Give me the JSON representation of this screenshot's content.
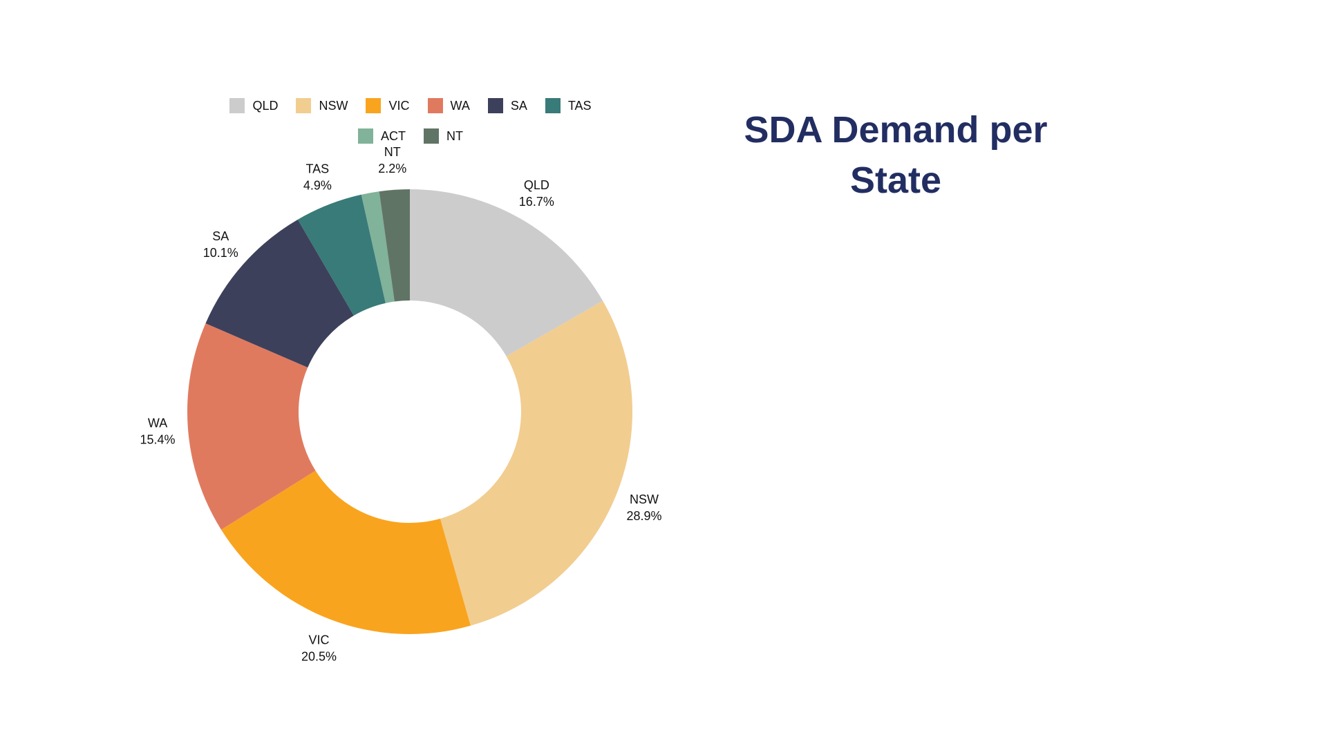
{
  "title": "SDA Demand per State",
  "chart_data": {
    "type": "pie",
    "variant": "donut",
    "title": "SDA Demand per State",
    "legend_position": "top",
    "slices": [
      {
        "label": "QLD",
        "value": 16.7,
        "value_label": "16.7%",
        "color": "#cccccc",
        "show_label": true
      },
      {
        "label": "NSW",
        "value": 28.9,
        "value_label": "28.9%",
        "color": "#f2cd90",
        "show_label": true
      },
      {
        "label": "VIC",
        "value": 20.5,
        "value_label": "20.5%",
        "color": "#f9a41e",
        "show_label": true
      },
      {
        "label": "WA",
        "value": 15.4,
        "value_label": "15.4%",
        "color": "#e07a5f",
        "show_label": true
      },
      {
        "label": "SA",
        "value": 10.1,
        "value_label": "10.1%",
        "color": "#3d405b",
        "show_label": true
      },
      {
        "label": "TAS",
        "value": 4.9,
        "value_label": "4.9%",
        "color": "#387b79",
        "show_label": true
      },
      {
        "label": "ACT",
        "value": 1.3,
        "value_label": "",
        "color": "#81b29a",
        "show_label": false
      },
      {
        "label": "NT",
        "value": 2.2,
        "value_label": "2.2%",
        "color": "#607466",
        "show_label": true
      }
    ]
  }
}
